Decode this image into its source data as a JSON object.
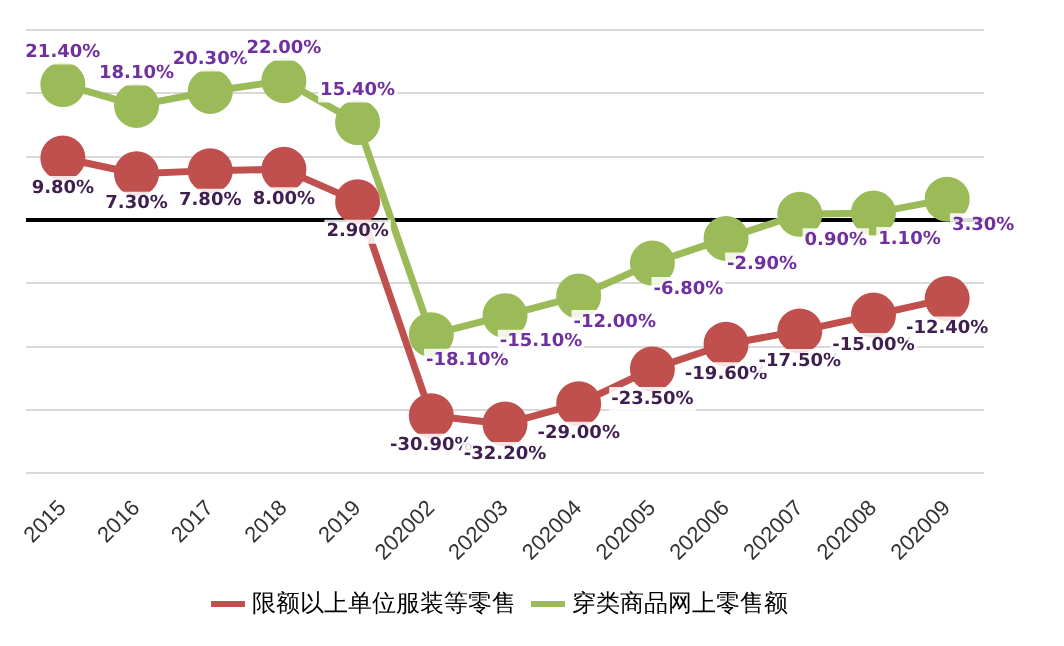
{
  "chart_data": {
    "type": "line",
    "categories": [
      "2015",
      "2016",
      "2017",
      "2018",
      "2019",
      "202002",
      "202003",
      "202004",
      "202005",
      "202006",
      "202007",
      "202008",
      "202009"
    ],
    "series": [
      {
        "name": "限额以上单位服装等零售",
        "color": "#c0504d",
        "values": [
          9.8,
          7.3,
          7.8,
          8.0,
          2.9,
          -30.9,
          -32.2,
          -29.0,
          -23.5,
          -19.6,
          -17.5,
          -15.0,
          -12.4
        ],
        "value_labels": [
          "9.80%",
          "7.30%",
          "7.80%",
          "8.00%",
          "2.90%",
          "-30.90%",
          "-32.20%",
          "-29.00%",
          "-23.50%",
          "-19.60%",
          "-17.50%",
          "-15.00%",
          "-12.40%"
        ]
      },
      {
        "name": "穿类商品网上零售额",
        "color": "#9bbb59",
        "values": [
          21.4,
          18.1,
          20.3,
          22.0,
          15.4,
          -18.1,
          -15.1,
          -12.0,
          -6.8,
          -2.9,
          0.9,
          1.1,
          3.3
        ],
        "value_labels": [
          "21.40%",
          "18.10%",
          "20.30%",
          "22.00%",
          "15.40%",
          "-18.10%",
          "-15.10%",
          "-12.00%",
          "-6.80%",
          "-2.90%",
          "0.90%",
          "1.10%",
          "3.30%"
        ]
      }
    ],
    "ylim": [
      -40,
      30
    ],
    "yticks": [
      {
        "value": -40,
        "label": null
      },
      {
        "value": -30,
        "label": null
      },
      {
        "value": -20,
        "label": null
      },
      {
        "value": -10,
        "label": null
      },
      {
        "value": 0,
        "label": null
      },
      {
        "value": 10,
        "label": null
      },
      {
        "value": 20,
        "label": null
      },
      {
        "value": 30,
        "label": null
      }
    ],
    "ref_lines": [
      {
        "axis": "y",
        "value": 0,
        "color": "#000000"
      }
    ],
    "tick_labels": "x",
    "grid": "y",
    "legend": "bottom",
    "marker": "circle",
    "line_style": "solid"
  }
}
